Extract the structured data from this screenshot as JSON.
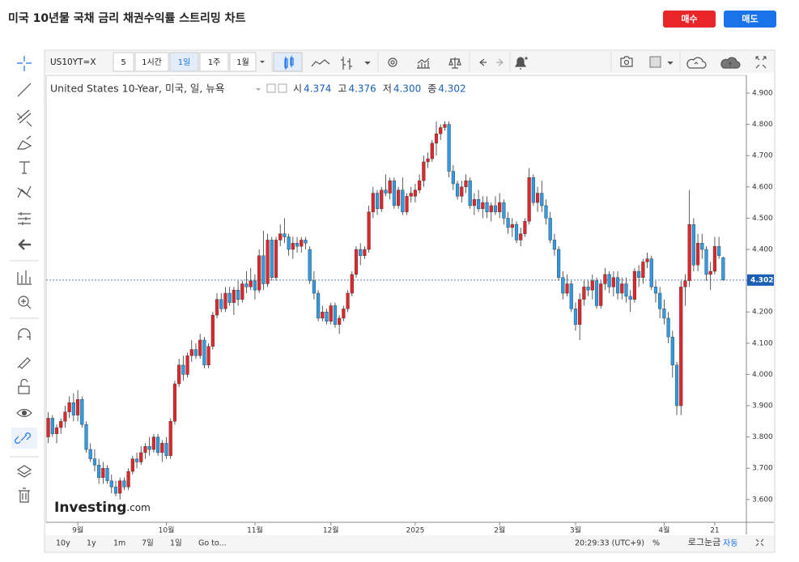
{
  "header": {
    "title": "미국 10년물 국채 금리 채권수익률 스트리밍 차트",
    "buy": "매수",
    "sell": "매도"
  },
  "toolbar": {
    "symbol": "US10YT=X",
    "intervals": [
      "5",
      "1시간",
      "1일",
      "1주",
      "1월"
    ]
  },
  "chart_data": {
    "type": "candlestick",
    "legend": {
      "name": "United States 10-Year, 미국, 일, 뉴욕",
      "items": [
        {
          "label": "시",
          "value": 4.374
        },
        {
          "label": "고",
          "value": 4.376
        },
        {
          "label": "저",
          "value": 4.3
        },
        {
          "label": "종",
          "value": 4.302
        }
      ]
    },
    "up_color": "#e0262b",
    "down_color": "#2e9be6",
    "categories": [
      null,
      null,
      null,
      null,
      null,
      null,
      null,
      "9월",
      null,
      null,
      null,
      null,
      null,
      null,
      null,
      null,
      null,
      null,
      null,
      null,
      null,
      null,
      null,
      null,
      null,
      null,
      null,
      null,
      "10월",
      null,
      null,
      null,
      null,
      null,
      null,
      null,
      null,
      null,
      null,
      null,
      null,
      null,
      null,
      null,
      null,
      null,
      null,
      null,
      null,
      "11월",
      null,
      null,
      null,
      null,
      null,
      null,
      null,
      null,
      null,
      null,
      null,
      null,
      null,
      null,
      null,
      null,
      null,
      "12월",
      null,
      null,
      null,
      null,
      null,
      null,
      null,
      null,
      null,
      null,
      null,
      null,
      null,
      null,
      null,
      null,
      null,
      null,
      null,
      "2025",
      null,
      null,
      null,
      null,
      null,
      null,
      null,
      null,
      null,
      null,
      null,
      null,
      null,
      null,
      null,
      null,
      null,
      null,
      null,
      "2월",
      null,
      null,
      null,
      null,
      null,
      null,
      null,
      null,
      null,
      null,
      null,
      null,
      null,
      null,
      null,
      null,
      null,
      "3월",
      null,
      null,
      null,
      null,
      null,
      null,
      null,
      null,
      null,
      null,
      null,
      null,
      null,
      null,
      null,
      null,
      null,
      null,
      null,
      null,
      "4월",
      null,
      null,
      null,
      null,
      null,
      null,
      null,
      null,
      null,
      null,
      null,
      "21",
      null,
      null
    ],
    "values": [
      [
        3.8,
        3.88,
        3.78,
        3.86
      ],
      [
        3.86,
        3.87,
        3.8,
        3.81
      ],
      [
        3.81,
        3.84,
        3.78,
        3.83
      ],
      [
        3.83,
        3.86,
        3.81,
        3.85
      ],
      [
        3.85,
        3.9,
        3.83,
        3.88
      ],
      [
        3.88,
        3.93,
        3.86,
        3.91
      ],
      [
        3.91,
        3.94,
        3.85,
        3.87
      ],
      [
        3.87,
        3.95,
        3.85,
        3.92
      ],
      [
        3.92,
        3.93,
        3.83,
        3.84
      ],
      [
        3.84,
        3.85,
        3.75,
        3.76
      ],
      [
        3.76,
        3.78,
        3.72,
        3.73
      ],
      [
        3.73,
        3.76,
        3.69,
        3.71
      ],
      [
        3.71,
        3.73,
        3.65,
        3.67
      ],
      [
        3.67,
        3.72,
        3.65,
        3.7
      ],
      [
        3.7,
        3.71,
        3.65,
        3.66
      ],
      [
        3.66,
        3.68,
        3.62,
        3.64
      ],
      [
        3.64,
        3.66,
        3.61,
        3.62
      ],
      [
        3.62,
        3.67,
        3.6,
        3.66
      ],
      [
        3.66,
        3.67,
        3.63,
        3.64
      ],
      [
        3.64,
        3.7,
        3.63,
        3.69
      ],
      [
        3.69,
        3.74,
        3.68,
        3.73
      ],
      [
        3.73,
        3.75,
        3.7,
        3.72
      ],
      [
        3.72,
        3.77,
        3.71,
        3.75
      ],
      [
        3.75,
        3.78,
        3.73,
        3.77
      ],
      [
        3.77,
        3.8,
        3.74,
        3.76
      ],
      [
        3.76,
        3.81,
        3.75,
        3.8
      ],
      [
        3.8,
        3.81,
        3.74,
        3.75
      ],
      [
        3.75,
        3.79,
        3.72,
        3.78
      ],
      [
        3.78,
        3.8,
        3.73,
        3.74
      ],
      [
        3.74,
        3.86,
        3.73,
        3.85
      ],
      [
        3.85,
        3.98,
        3.84,
        3.97
      ],
      [
        3.97,
        4.05,
        3.96,
        4.03
      ],
      [
        4.03,
        4.06,
        3.98,
        4.0
      ],
      [
        4.0,
        4.07,
        3.99,
        4.06
      ],
      [
        4.06,
        4.11,
        4.04,
        4.08
      ],
      [
        4.08,
        4.1,
        4.05,
        4.06
      ],
      [
        4.06,
        4.13,
        4.05,
        4.11
      ],
      [
        4.11,
        4.12,
        4.02,
        4.03
      ],
      [
        4.03,
        4.1,
        4.02,
        4.09
      ],
      [
        4.09,
        4.2,
        4.08,
        4.19
      ],
      [
        4.19,
        4.26,
        4.18,
        4.24
      ],
      [
        4.24,
        4.26,
        4.2,
        4.21
      ],
      [
        4.21,
        4.28,
        4.2,
        4.26
      ],
      [
        4.26,
        4.28,
        4.22,
        4.23
      ],
      [
        4.23,
        4.28,
        4.19,
        4.27
      ],
      [
        4.27,
        4.3,
        4.22,
        4.24
      ],
      [
        4.24,
        4.3,
        4.23,
        4.29
      ],
      [
        4.29,
        4.33,
        4.26,
        4.28
      ],
      [
        4.28,
        4.34,
        4.27,
        4.3
      ],
      [
        4.3,
        4.32,
        4.24,
        4.27
      ],
      [
        4.27,
        4.4,
        4.26,
        4.38
      ],
      [
        4.38,
        4.46,
        4.27,
        4.29
      ],
      [
        4.29,
        4.45,
        4.28,
        4.43
      ],
      [
        4.43,
        4.44,
        4.3,
        4.31
      ],
      [
        4.31,
        4.44,
        4.3,
        4.43
      ],
      [
        4.43,
        4.48,
        4.41,
        4.45
      ],
      [
        4.45,
        4.5,
        4.42,
        4.44
      ],
      [
        4.44,
        4.45,
        4.38,
        4.4
      ],
      [
        4.4,
        4.44,
        4.37,
        4.42
      ],
      [
        4.42,
        4.44,
        4.39,
        4.41
      ],
      [
        4.41,
        4.44,
        4.39,
        4.43
      ],
      [
        4.43,
        4.44,
        4.4,
        4.42
      ],
      [
        4.4,
        4.41,
        4.29,
        4.3
      ],
      [
        4.3,
        4.33,
        4.24,
        4.26
      ],
      [
        4.26,
        4.27,
        4.17,
        4.18
      ],
      [
        4.18,
        4.22,
        4.17,
        4.2
      ],
      [
        4.2,
        4.21,
        4.16,
        4.17
      ],
      [
        4.17,
        4.23,
        4.16,
        4.22
      ],
      [
        4.22,
        4.23,
        4.15,
        4.16
      ],
      [
        4.16,
        4.19,
        4.13,
        4.18
      ],
      [
        4.18,
        4.22,
        4.17,
        4.21
      ],
      [
        4.21,
        4.27,
        4.2,
        4.26
      ],
      [
        4.26,
        4.33,
        4.25,
        4.32
      ],
      [
        4.32,
        4.41,
        4.31,
        4.4
      ],
      [
        4.4,
        4.42,
        4.35,
        4.38
      ],
      [
        4.38,
        4.41,
        4.37,
        4.4
      ],
      [
        4.4,
        4.54,
        4.39,
        4.52
      ],
      [
        4.52,
        4.6,
        4.5,
        4.58
      ],
      [
        4.58,
        4.59,
        4.51,
        4.53
      ],
      [
        4.53,
        4.6,
        4.52,
        4.59
      ],
      [
        4.59,
        4.64,
        4.57,
        4.58
      ],
      [
        4.58,
        4.63,
        4.56,
        4.62
      ],
      [
        4.62,
        4.63,
        4.53,
        4.54
      ],
      [
        4.54,
        4.6,
        4.53,
        4.59
      ],
      [
        4.59,
        4.63,
        4.51,
        4.52
      ],
      [
        4.52,
        4.58,
        4.51,
        4.57
      ],
      [
        4.57,
        4.6,
        4.55,
        4.58
      ],
      [
        4.57,
        4.61,
        4.55,
        4.59
      ],
      [
        4.59,
        4.64,
        4.58,
        4.62
      ],
      [
        4.62,
        4.7,
        4.6,
        4.68
      ],
      [
        4.68,
        4.71,
        4.66,
        4.69
      ],
      [
        4.69,
        4.75,
        4.68,
        4.74
      ],
      [
        4.74,
        4.81,
        4.7,
        4.77
      ],
      [
        4.77,
        4.8,
        4.75,
        4.79
      ],
      [
        4.79,
        4.81,
        4.78,
        4.8
      ],
      [
        4.8,
        4.81,
        4.63,
        4.65
      ],
      [
        4.65,
        4.67,
        4.59,
        4.61
      ],
      [
        4.61,
        4.62,
        4.56,
        4.57
      ],
      [
        4.57,
        4.62,
        4.55,
        4.6
      ],
      [
        4.6,
        4.64,
        4.58,
        4.62
      ],
      [
        4.62,
        4.63,
        4.53,
        4.54
      ],
      [
        4.54,
        4.58,
        4.51,
        4.56
      ],
      [
        4.56,
        4.59,
        4.52,
        4.53
      ],
      [
        4.53,
        4.57,
        4.5,
        4.55
      ],
      [
        4.55,
        4.57,
        4.5,
        4.52
      ],
      [
        4.52,
        4.55,
        4.49,
        4.54
      ],
      [
        4.54,
        4.57,
        4.51,
        4.52
      ],
      [
        4.52,
        4.58,
        4.5,
        4.55
      ],
      [
        4.55,
        4.56,
        4.48,
        4.5
      ],
      [
        4.5,
        4.52,
        4.45,
        4.47
      ],
      [
        4.47,
        4.5,
        4.44,
        4.48
      ],
      [
        4.48,
        4.49,
        4.42,
        4.43
      ],
      [
        4.43,
        4.47,
        4.41,
        4.45
      ],
      [
        4.45,
        4.5,
        4.44,
        4.49
      ],
      [
        4.49,
        4.66,
        4.48,
        4.63
      ],
      [
        4.63,
        4.64,
        4.54,
        4.55
      ],
      [
        4.55,
        4.6,
        4.52,
        4.58
      ],
      [
        4.58,
        4.62,
        4.52,
        4.54
      ],
      [
        4.54,
        4.56,
        4.48,
        4.5
      ],
      [
        4.5,
        4.52,
        4.42,
        4.43
      ],
      [
        4.43,
        4.45,
        4.38,
        4.4
      ],
      [
        4.4,
        4.41,
        4.3,
        4.31
      ],
      [
        4.31,
        4.33,
        4.24,
        4.26
      ],
      [
        4.26,
        4.32,
        4.25,
        4.29
      ],
      [
        4.29,
        4.3,
        4.2,
        4.21
      ],
      [
        4.21,
        4.23,
        4.14,
        4.16
      ],
      [
        4.16,
        4.26,
        4.11,
        4.24
      ],
      [
        4.24,
        4.3,
        4.22,
        4.28
      ],
      [
        4.28,
        4.3,
        4.25,
        4.27
      ],
      [
        4.27,
        4.32,
        4.24,
        4.3
      ],
      [
        4.3,
        4.31,
        4.21,
        4.22
      ],
      [
        4.22,
        4.3,
        4.21,
        4.29
      ],
      [
        4.29,
        4.34,
        4.27,
        4.32
      ],
      [
        4.32,
        4.33,
        4.26,
        4.28
      ],
      [
        4.28,
        4.33,
        4.25,
        4.31
      ],
      [
        4.31,
        4.33,
        4.24,
        4.26
      ],
      [
        4.26,
        4.31,
        4.24,
        4.29
      ],
      [
        4.29,
        4.31,
        4.23,
        4.25
      ],
      [
        4.25,
        4.27,
        4.2,
        4.24
      ],
      [
        4.24,
        4.34,
        4.23,
        4.33
      ],
      [
        4.33,
        4.35,
        4.28,
        4.31
      ],
      [
        4.31,
        4.37,
        4.29,
        4.36
      ],
      [
        4.36,
        4.39,
        4.34,
        4.37
      ],
      [
        4.37,
        4.38,
        4.27,
        4.28
      ],
      [
        4.28,
        4.3,
        4.23,
        4.26
      ],
      [
        4.26,
        4.28,
        4.18,
        4.21
      ],
      [
        4.21,
        4.24,
        4.16,
        4.18
      ],
      [
        4.18,
        4.2,
        4.1,
        4.12
      ],
      [
        4.12,
        4.14,
        3.99,
        4.03
      ],
      [
        4.03,
        4.04,
        3.87,
        3.9
      ],
      [
        3.9,
        4.3,
        3.87,
        4.28
      ],
      [
        4.28,
        4.32,
        4.22,
        4.3
      ],
      [
        4.3,
        4.59,
        4.28,
        4.48
      ],
      [
        4.48,
        4.5,
        4.33,
        4.35
      ],
      [
        4.35,
        4.45,
        4.33,
        4.42
      ],
      [
        4.42,
        4.45,
        4.37,
        4.4
      ],
      [
        4.4,
        4.41,
        4.3,
        4.32
      ],
      [
        4.32,
        4.36,
        4.27,
        4.33
      ],
      [
        4.33,
        4.44,
        4.32,
        4.41
      ],
      [
        4.41,
        4.44,
        4.37,
        4.38
      ],
      [
        4.374,
        4.376,
        4.3,
        4.302
      ]
    ],
    "ylim": [
      3.527,
      4.957
    ],
    "yticks": [
      {
        "value": 3.6,
        "label": "3.600"
      },
      {
        "value": 3.7,
        "label": "3.700"
      },
      {
        "value": 3.8,
        "label": "3.800"
      },
      {
        "value": 3.9,
        "label": "3.900"
      },
      {
        "value": 4.0,
        "label": "4.000"
      },
      {
        "value": 4.1,
        "label": "4.100"
      },
      {
        "value": 4.2,
        "label": "4.200"
      },
      {
        "value": 4.3,
        "label": "4.300"
      },
      {
        "value": 4.4,
        "label": "4.400"
      },
      {
        "value": 4.5,
        "label": "4.500"
      },
      {
        "value": 4.6,
        "label": "4.600"
      },
      {
        "value": 4.7,
        "label": "4.700"
      },
      {
        "value": 4.8,
        "label": "4.800"
      },
      {
        "value": 4.9,
        "label": "4.900"
      }
    ],
    "last_price": {
      "value": 4.302,
      "label": "4.302"
    },
    "watermark": [
      "Investing",
      ".com"
    ]
  },
  "footer": {
    "ranges": [
      "10y",
      "1y",
      "1m",
      "7일",
      "1일"
    ],
    "goto": "Go to...",
    "time": "20:29:33 (UTC+9)",
    "percent": "%",
    "log": "로그눈금",
    "auto": "자동"
  }
}
